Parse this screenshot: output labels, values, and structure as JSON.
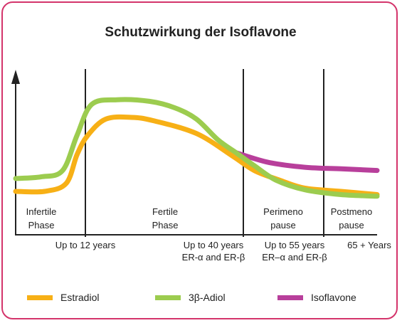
{
  "chart_data": {
    "type": "line",
    "title": "Schutzwirkung der Isoflavone",
    "xlabel": "",
    "ylabel": "",
    "phases": [
      {
        "name": "Infertile",
        "name2": "Phase"
      },
      {
        "name": "Fertile",
        "name2": "Phase"
      },
      {
        "name": "Perimeno",
        "name2": "pause"
      },
      {
        "name": "Postmeno",
        "name2": "pause"
      }
    ],
    "x_tick_labels": [
      {
        "line1": "Up to 12 years",
        "line2": ""
      },
      {
        "line1": "Up to 40 years",
        "line2": "ER-α and ER-β"
      },
      {
        "line1": "Up to 55 years",
        "line2": "ER–α and ER-β"
      },
      {
        "line1": "65 + Years",
        "line2": ""
      }
    ],
    "ylim": [
      0,
      100
    ],
    "series": [
      {
        "name": "Estradiol",
        "color": "#f7b016",
        "points": [
          [
            0,
            27
          ],
          [
            8,
            27
          ],
          [
            14,
            32
          ],
          [
            17,
            50
          ],
          [
            20,
            62
          ],
          [
            25,
            72
          ],
          [
            32,
            73
          ],
          [
            38,
            71
          ],
          [
            50,
            63
          ],
          [
            60,
            49
          ],
          [
            66,
            40
          ],
          [
            73,
            34
          ],
          [
            80,
            29
          ],
          [
            90,
            27
          ],
          [
            100,
            25
          ]
        ]
      },
      {
        "name": "3β-Adiol",
        "color": "#9ccc4f",
        "points": [
          [
            0,
            35
          ],
          [
            7,
            36
          ],
          [
            13,
            40
          ],
          [
            17,
            62
          ],
          [
            21,
            81
          ],
          [
            28,
            84
          ],
          [
            37,
            83
          ],
          [
            44,
            79
          ],
          [
            50,
            72
          ],
          [
            56,
            59
          ],
          [
            61,
            51
          ],
          [
            66,
            43
          ],
          [
            72,
            34
          ],
          [
            80,
            28
          ],
          [
            90,
            25
          ],
          [
            100,
            24
          ]
        ]
      },
      {
        "name": "Isoflavone",
        "color": "#b83f9b",
        "points": [
          [
            61,
            51
          ],
          [
            70,
            45
          ],
          [
            80,
            42
          ],
          [
            90,
            41
          ],
          [
            100,
            40
          ]
        ]
      }
    ]
  }
}
